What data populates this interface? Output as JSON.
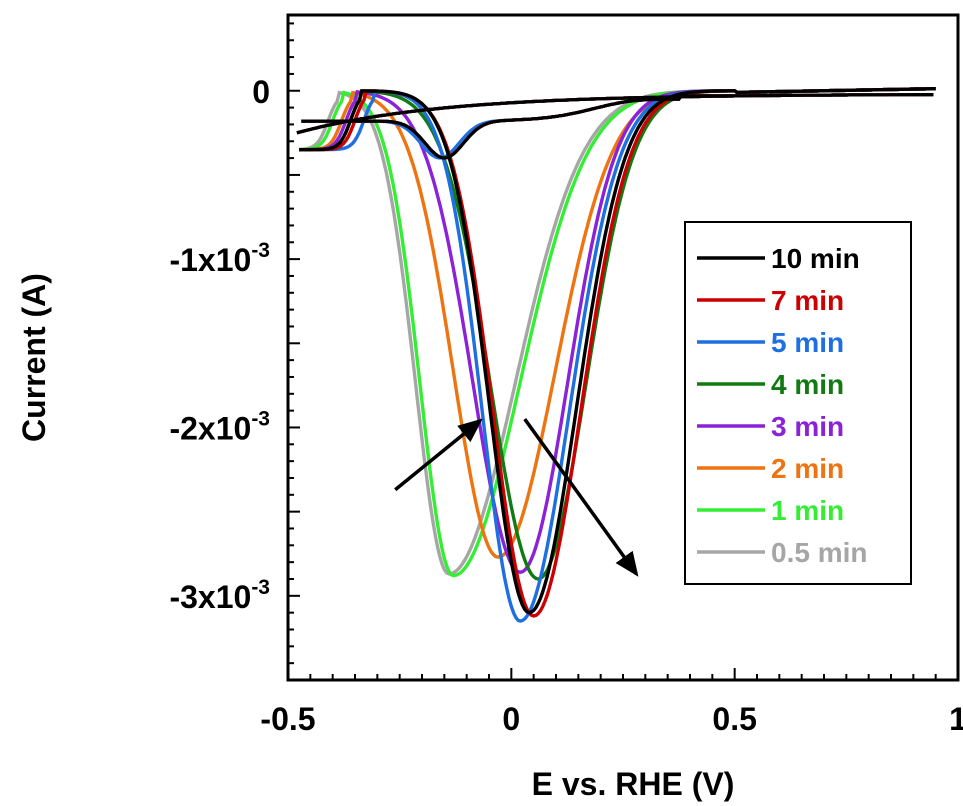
{
  "chart_data": {
    "type": "line",
    "xlabel": "E vs. RHE (V)",
    "ylabel": "Current (A)",
    "xlim": [
      -0.5,
      1.0
    ],
    "ylim": [
      -0.0035,
      0.00045
    ],
    "x_ticks": [
      {
        "value": -0.5,
        "label": "-0.5"
      },
      {
        "value": 0,
        "label": "0"
      },
      {
        "value": 0.5,
        "label": "0.5"
      },
      {
        "value": 1.0,
        "label": "1"
      }
    ],
    "y_ticks": [
      {
        "value": 0,
        "mant": "0",
        "exp": ""
      },
      {
        "value": -0.001,
        "mant": "-1x10",
        "exp": "-3"
      },
      {
        "value": -0.002,
        "mant": "-2x10",
        "exp": "-3"
      },
      {
        "value": -0.003,
        "mant": "-3x10",
        "exp": "-3"
      }
    ],
    "legend_position": "right",
    "annotations": [
      {
        "type": "arrow",
        "from": [
          -0.26,
          -0.00237
        ],
        "to": [
          -0.07,
          -0.00196
        ]
      },
      {
        "type": "arrow",
        "from": [
          0.03,
          -0.00195
        ],
        "to": [
          0.28,
          -0.00287
        ]
      }
    ],
    "series": [
      {
        "name": "10 min",
        "color": "#000000",
        "peak_E": 0.04,
        "peak_I": -0.0031,
        "w_left": 0.125,
        "w_right": 0.15,
        "onset_E": -0.36,
        "small_E": -0.15,
        "small_I": -0.00038
      },
      {
        "name": "7 min",
        "color": "#cc0000",
        "peak_E": 0.05,
        "peak_I": -0.00312,
        "w_left": 0.13,
        "w_right": 0.15,
        "onset_E": -0.35,
        "small_E": -0.15,
        "small_I": -0.00038
      },
      {
        "name": "5 min",
        "color": "#1e6fe0",
        "peak_E": 0.02,
        "peak_I": -0.00315,
        "w_left": 0.12,
        "w_right": 0.155,
        "onset_E": -0.33,
        "small_E": -0.16,
        "small_I": -0.0004
      },
      {
        "name": "4 min",
        "color": "#127a12",
        "peak_E": 0.06,
        "peak_I": -0.0029,
        "w_left": 0.15,
        "w_right": 0.15,
        "onset_E": -0.36,
        "small_E": -0.15,
        "small_I": -0.00038
      },
      {
        "name": "3 min",
        "color": "#8b22d8",
        "peak_E": 0.02,
        "peak_I": -0.00286,
        "w_left": 0.15,
        "w_right": 0.15,
        "onset_E": -0.37,
        "small_E": -0.15,
        "small_I": -0.00038
      },
      {
        "name": "2 min",
        "color": "#ee7311",
        "peak_E": -0.03,
        "peak_I": -0.00277,
        "w_left": 0.14,
        "w_right": 0.18,
        "onset_E": -0.38,
        "small_E": -0.15,
        "small_I": -0.00039
      },
      {
        "name": "1 min",
        "color": "#33ee33",
        "peak_E": -0.13,
        "peak_I": -0.00288,
        "w_left": 0.105,
        "w_right": 0.21,
        "onset_E": -0.4,
        "small_E": -0.15,
        "small_I": -0.0004
      },
      {
        "name": "0.5 min",
        "color": "#a6a6a6",
        "peak_E": -0.14,
        "peak_I": -0.00287,
        "w_left": 0.105,
        "w_right": 0.21,
        "onset_E": -0.41,
        "small_E": -0.15,
        "small_I": -0.0004
      }
    ]
  }
}
